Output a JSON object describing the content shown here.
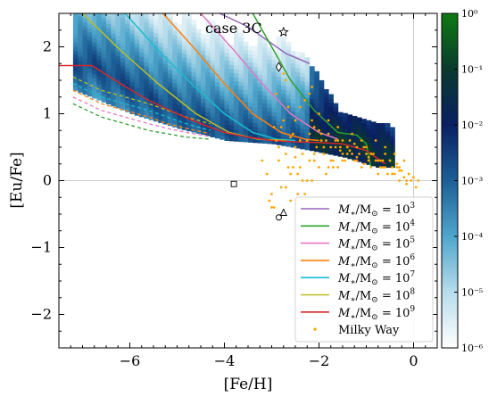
{
  "chart_data": {
    "type": "scatter",
    "annotation": "case 3C",
    "xlabel": "[Fe/H]",
    "ylabel": "[Eu/Fe]",
    "xlim": [
      -7.5,
      0.5
    ],
    "ylim": [
      -2.5,
      2.5
    ],
    "x_ticks": [
      -6,
      -4,
      -2,
      0
    ],
    "x_tick_labels": [
      "−6",
      "−4",
      "−2",
      "0"
    ],
    "y_ticks": [
      -2,
      -1,
      0,
      1,
      2
    ],
    "y_tick_labels": [
      "−2",
      "−1",
      "0",
      "1",
      "2"
    ],
    "grid": false,
    "reference_lines": {
      "x": 0,
      "y": 0
    },
    "colorbar": {
      "scale": "log",
      "range": [
        1e-06,
        1
      ],
      "ticks": [
        -6,
        -5,
        -4,
        -3,
        -2,
        -1,
        0
      ],
      "tick_labels": [
        "10⁻⁶",
        "10⁻⁵",
        "10⁻⁴",
        "10⁻³",
        "10⁻²",
        "10⁻¹",
        "10⁰"
      ],
      "colors": [
        "#ffffff",
        "#b7dceb",
        "#4fa6cc",
        "#1c5f96",
        "#0a1f63",
        "#0a3a2e",
        "#0e7a12"
      ]
    },
    "legend_position": "lower-right",
    "series": [
      {
        "name": "M*/M⊙ = 10^3",
        "label_base": "M",
        "label_sub": "∗",
        "label_mid": "/M",
        "label_sub2": "⊙",
        "label_exp": "3",
        "color": "#9467bd",
        "x": [
          -4.1,
          -3.5,
          -3.0,
          -2.7,
          -2.2
        ],
        "y": [
          2.5,
          2.3,
          2.05,
          1.9,
          1.75
        ],
        "dashed_x": [],
        "dashed_y": []
      },
      {
        "name": "M*/M⊙ = 10^4",
        "label_base": "M",
        "label_sub": "∗",
        "label_mid": "/M",
        "label_sub2": "⊙",
        "label_exp": "4",
        "color": "#2ca02c",
        "x": [
          -3.4,
          -3.0,
          -2.6,
          -2.1,
          -1.6,
          -1.2,
          -1.0,
          -0.9
        ],
        "y": [
          2.5,
          2.0,
          1.5,
          1.05,
          0.72,
          0.68,
          0.55,
          0.2
        ],
        "dashed_x": [
          -7.2,
          -6.6,
          -6.1,
          -5.6,
          -5.2,
          -4.8,
          -4.3
        ],
        "dashed_y": [
          1.15,
          0.95,
          0.85,
          0.75,
          0.7,
          0.65,
          0.62
        ]
      },
      {
        "name": "M*/M⊙ = 10^5",
        "label_base": "M",
        "label_sub": "∗",
        "label_mid": "/M",
        "label_sub2": "⊙",
        "label_exp": "5",
        "color": "#e377c2",
        "x": [
          -4.5,
          -3.8,
          -3.2,
          -2.6,
          -2.0,
          -1.6
        ],
        "y": [
          2.5,
          1.95,
          1.45,
          1.0,
          0.72,
          0.62
        ],
        "dashed_x": [
          -7.2,
          -6.6,
          -6.1,
          -5.6,
          -5.2,
          -4.8,
          -4.3
        ],
        "dashed_y": [
          1.25,
          1.05,
          0.95,
          0.85,
          0.78,
          0.72,
          0.66
        ]
      },
      {
        "name": "M*/M⊙ = 10^6",
        "label_base": "M",
        "label_sub": "∗",
        "label_mid": "/M",
        "label_sub2": "⊙",
        "label_exp": "6",
        "color": "#ff7f0e",
        "x": [
          -5.3,
          -4.6,
          -4.0,
          -3.4,
          -2.8,
          -2.3,
          -2.0
        ],
        "y": [
          2.5,
          1.95,
          1.45,
          1.0,
          0.72,
          0.62,
          0.6
        ],
        "dashed_x": [
          -7.2,
          -6.6,
          -6.1,
          -5.6,
          -5.2,
          -4.8,
          -4.3
        ],
        "dashed_y": [
          1.35,
          1.15,
          1.05,
          0.95,
          0.85,
          0.78,
          0.7
        ]
      },
      {
        "name": "M*/M⊙ = 10^7",
        "label_base": "M",
        "label_sub": "∗",
        "label_mid": "/M",
        "label_sub2": "⊙",
        "label_exp": "7",
        "color": "#17becf",
        "x": [
          -6.1,
          -5.4,
          -4.7,
          -4.0,
          -3.4,
          -2.9,
          -2.5
        ],
        "y": [
          2.5,
          1.95,
          1.45,
          1.0,
          0.72,
          0.62,
          0.6
        ],
        "dashed_x": [
          -7.2,
          -6.6,
          -6.1,
          -5.6,
          -5.2,
          -4.8,
          -4.3
        ],
        "dashed_y": [
          1.45,
          1.25,
          1.15,
          1.05,
          0.95,
          0.85,
          0.75
        ]
      },
      {
        "name": "M*/M⊙ = 10^8",
        "label_base": "M",
        "label_sub": "∗",
        "label_mid": "/M",
        "label_sub2": "⊙",
        "label_exp": "8",
        "color": "#bcbd22",
        "x": [
          -7.0,
          -6.2,
          -5.4,
          -4.6,
          -3.9,
          -3.3,
          -2.7
        ],
        "y": [
          2.5,
          1.95,
          1.45,
          1.0,
          0.72,
          0.62,
          0.6
        ],
        "dashed_x": [
          -7.2,
          -6.6,
          -6.1,
          -5.6,
          -5.2,
          -4.8,
          -4.3
        ],
        "dashed_y": [
          1.55,
          1.35,
          1.25,
          1.15,
          1.05,
          0.95,
          0.85
        ]
      },
      {
        "name": "M*/M⊙ = 10^9",
        "label_base": "M",
        "label_sub": "∗",
        "label_mid": "/M",
        "label_sub2": "⊙",
        "label_exp": "9",
        "color": "#d62728",
        "x": [
          -7.5,
          -6.8,
          -6.2,
          -5.6,
          -5.0,
          -4.5,
          -4.0,
          -3.5,
          -3.0,
          -2.5,
          -2.0,
          -1.5,
          -1.0,
          -0.6
        ],
        "y": [
          1.72,
          1.72,
          1.45,
          1.2,
          1.0,
          0.85,
          0.72,
          0.65,
          0.6,
          0.58,
          0.57,
          0.55,
          0.45,
          0.25
        ],
        "dashed_x": [],
        "dashed_y": []
      }
    ],
    "milky_way": {
      "name": "Milky Way",
      "color": "#ffa500",
      "x": [
        -3.1,
        -3.0,
        -2.9,
        -2.85,
        -2.8,
        -2.75,
        -2.7,
        -2.65,
        -2.6,
        -2.55,
        -2.5,
        -2.45,
        -2.4,
        -2.35,
        -2.3,
        -2.25,
        -2.2,
        -2.15,
        -2.1,
        -2.05,
        -2.0,
        -1.95,
        -1.9,
        -1.85,
        -1.8,
        -1.75,
        -1.7,
        -1.65,
        -1.6,
        -1.55,
        -1.5,
        -1.45,
        -1.4,
        -1.35,
        -1.3,
        -1.25,
        -1.2,
        -1.15,
        -1.1,
        -1.05,
        -1.0,
        -0.95,
        -0.9,
        -0.85,
        -0.8,
        -0.75,
        -0.7,
        -0.65,
        -0.6,
        -0.55,
        -0.5,
        -0.45,
        -0.4,
        -0.35,
        -0.3,
        -0.25,
        -0.2,
        -0.15,
        -0.1,
        -0.05,
        0.0,
        0.05,
        0.1,
        -2.9,
        -2.8,
        -2.7,
        -2.6,
        -2.5,
        -2.4,
        -2.3,
        -2.2,
        -2.1,
        -2.0,
        -1.9,
        -1.8,
        -1.7,
        -1.6,
        -1.5,
        -1.4,
        -1.3,
        -1.2,
        -1.1,
        -1.0,
        -0.9,
        -0.8,
        -0.7,
        -0.6,
        -0.5,
        -0.4,
        -0.3,
        -0.2,
        -0.1,
        -3.0,
        -2.85,
        -2.7,
        -2.55,
        -2.4,
        -2.25,
        -2.1,
        -1.95,
        -1.8,
        -1.65,
        -1.5,
        -1.35,
        -1.2,
        -1.05,
        -0.9,
        -0.75,
        -0.6,
        -0.45,
        -0.3,
        -0.15,
        -3.2,
        -3.05,
        -2.95,
        -2.65,
        -2.35,
        -2.15,
        -1.85,
        -1.55,
        -1.25,
        -0.95,
        -0.65,
        -0.35,
        -2.75,
        -2.45,
        -2.15,
        -1.75,
        -2.6,
        -2.2,
        -2.95,
        -2.5,
        -2.0,
        -1.6
      ],
      "y": [
        0.1,
        -0.2,
        0.6,
        0.3,
        -0.1,
        0.9,
        0.4,
        0.2,
        -0.3,
        0.7,
        0.5,
        0.1,
        1.1,
        0.4,
        -0.2,
        0.6,
        0.3,
        0.0,
        0.8,
        0.5,
        0.2,
        0.6,
        0.4,
        0.1,
        0.7,
        0.5,
        0.3,
        0.6,
        0.2,
        0.5,
        0.4,
        0.3,
        0.5,
        0.6,
        0.4,
        0.3,
        0.5,
        0.4,
        0.2,
        0.5,
        0.4,
        0.3,
        0.2,
        0.4,
        0.3,
        0.1,
        0.3,
        0.2,
        0.4,
        0.1,
        0.3,
        0.2,
        0.1,
        0.2,
        0.0,
        0.15,
        0.05,
        -0.05,
        0.1,
        0.0,
        0.05,
        -0.1,
        0.0,
        1.3,
        0.8,
        1.5,
        0.1,
        0.9,
        0.2,
        1.2,
        0.7,
        0.3,
        1.0,
        0.5,
        0.9,
        0.2,
        0.8,
        0.6,
        0.4,
        0.7,
        0.3,
        0.6,
        0.5,
        0.4,
        0.6,
        0.2,
        0.5,
        0.3,
        0.4,
        0.2,
        0.3,
        0.1,
        -0.4,
        0.5,
        -0.1,
        0.2,
        0.6,
        0.0,
        0.4,
        0.7,
        0.2,
        0.5,
        0.3,
        0.45,
        0.35,
        0.25,
        0.4,
        0.3,
        0.2,
        0.1,
        0.15,
        0.0,
        0.3,
        -0.3,
        0.8,
        1.1,
        0.0,
        1.4,
        0.6,
        0.45,
        0.55,
        0.35,
        0.3,
        0.25,
        1.6,
        -0.2,
        0.9,
        0.3,
        0.65,
        1.3,
        -0.4,
        0.35,
        0.75,
        0.6
      ]
    },
    "markers": [
      {
        "shape": "star",
        "x": -2.75,
        "y": 2.22
      },
      {
        "shape": "diamond",
        "x": -2.85,
        "y": 1.7
      },
      {
        "shape": "square",
        "x": -3.8,
        "y": -0.05
      },
      {
        "shape": "circle",
        "x": -2.85,
        "y": -0.55
      },
      {
        "shape": "triangle",
        "x": -2.75,
        "y": -0.48
      }
    ]
  }
}
